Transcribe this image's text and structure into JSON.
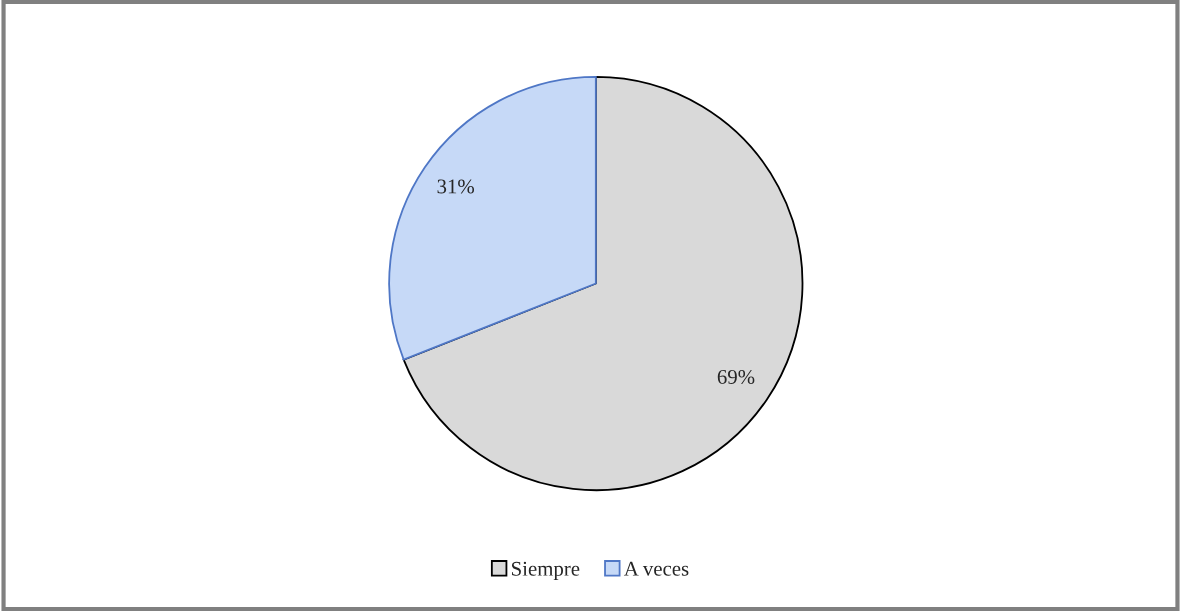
{
  "chart_data": {
    "type": "pie",
    "categories": [
      "Siempre",
      "A veces"
    ],
    "values": [
      69,
      31
    ],
    "colors": [
      "#d9d9d9",
      "#c6d9f7"
    ],
    "value_labels": [
      "69%",
      "31%"
    ],
    "legend": "bottom"
  }
}
